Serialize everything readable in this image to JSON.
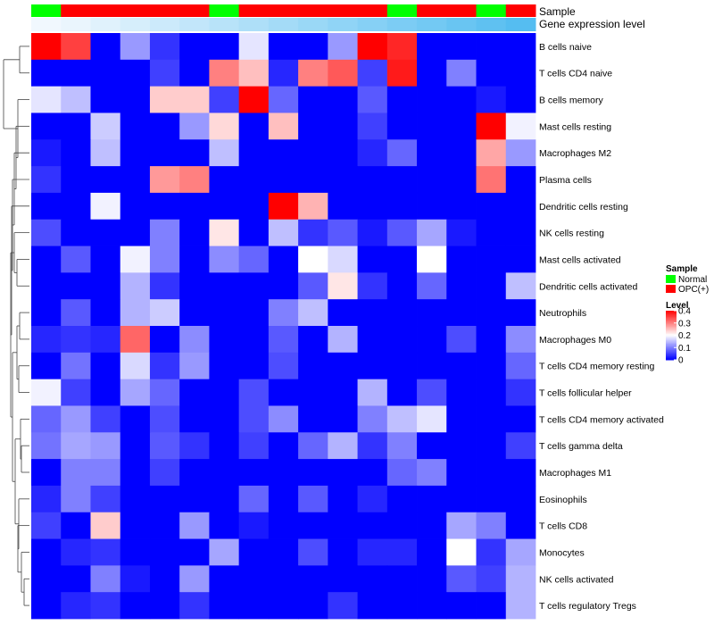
{
  "chart_data": {
    "type": "heatmap",
    "row_labels": [
      "B cells naive",
      "T cells CD4 naive",
      "B cells memory",
      "Mast cells resting",
      "Macrophages M2",
      "Plasma cells",
      "Dendritic cells resting",
      "NK cells resting",
      "Mast cells activated",
      "Dendritic cells activated",
      "Neutrophils",
      "Macrophages M0",
      "T cells CD4 memory resting",
      "T cells follicular helper",
      "T cells CD4 memory activated",
      "T cells gamma delta",
      "Macrophages M1",
      "Eosinophils",
      "T cells CD8",
      "Monocytes",
      "NK cells activated",
      "T cells regulatory  Tregs"
    ],
    "annotations": {
      "sample_label": "Sample",
      "level_label": "Gene expression level",
      "sample_groups": [
        "Normal",
        "OPC(+)",
        "OPC(+)",
        "OPC(+)",
        "OPC(+)",
        "OPC(+)",
        "Normal",
        "OPC(+)",
        "OPC(+)",
        "OPC(+)",
        "OPC(+)",
        "OPC(+)",
        "Normal",
        "OPC(+)",
        "OPC(+)",
        "Normal",
        "OPC(+)"
      ],
      "expression_level": [
        0.02,
        0.06,
        0.12,
        0.18,
        0.24,
        0.3,
        0.36,
        0.42,
        0.48,
        0.54,
        0.6,
        0.66,
        0.72,
        0.78,
        0.84,
        0.9,
        0.96
      ]
    },
    "values": [
      [
        0.4,
        0.35,
        0.0,
        0.12,
        0.04,
        0.0,
        0.0,
        0.18,
        0.0,
        0.0,
        0.12,
        0.4,
        0.37,
        0.0,
        0.0,
        0.0,
        0.0
      ],
      [
        0.0,
        0.0,
        0.0,
        0.0,
        0.05,
        0.0,
        0.3,
        0.25,
        0.03,
        0.3,
        0.33,
        0.05,
        0.38,
        0.0,
        0.1,
        0.0,
        0.0
      ],
      [
        0.18,
        0.15,
        0.0,
        0.0,
        0.24,
        0.24,
        0.05,
        0.42,
        0.08,
        0.0,
        0.0,
        0.07,
        0.0,
        0.0,
        0.0,
        0.02,
        0.0
      ],
      [
        0.0,
        0.0,
        0.16,
        0.0,
        0.0,
        0.12,
        0.23,
        0.0,
        0.25,
        0.0,
        0.0,
        0.05,
        0.0,
        0.0,
        0.0,
        0.4,
        0.19
      ],
      [
        0.02,
        0.0,
        0.15,
        0.0,
        0.0,
        0.0,
        0.15,
        0.0,
        0.0,
        0.0,
        0.0,
        0.03,
        0.08,
        0.0,
        0.0,
        0.27,
        0.12
      ],
      [
        0.04,
        0.0,
        0.0,
        0.0,
        0.28,
        0.3,
        0.0,
        0.0,
        0.0,
        0.0,
        0.0,
        0.0,
        0.0,
        0.0,
        0.0,
        0.31,
        0.0
      ],
      [
        0.0,
        0.0,
        0.19,
        0.0,
        0.0,
        0.0,
        0.0,
        0.0,
        0.4,
        0.26,
        0.0,
        0.0,
        0.0,
        0.0,
        0.0,
        0.0,
        0.0
      ],
      [
        0.06,
        0.0,
        0.0,
        0.0,
        0.1,
        0.0,
        0.22,
        0.0,
        0.15,
        0.04,
        0.07,
        0.02,
        0.07,
        0.13,
        0.02,
        0.0,
        0.0
      ],
      [
        0.0,
        0.07,
        0.0,
        0.19,
        0.1,
        0.0,
        0.11,
        0.08,
        0.0,
        0.2,
        0.17,
        0.0,
        0.0,
        0.2,
        0.0,
        0.0,
        0.0
      ],
      [
        0.0,
        0.0,
        0.0,
        0.14,
        0.04,
        0.0,
        0.0,
        0.0,
        0.0,
        0.07,
        0.22,
        0.04,
        0.0,
        0.08,
        0.0,
        0.0,
        0.15
      ],
      [
        0.0,
        0.07,
        0.0,
        0.14,
        0.16,
        0.0,
        0.0,
        0.0,
        0.1,
        0.15,
        0.0,
        0.0,
        0.0,
        0.0,
        0.0,
        0.0,
        0.0
      ],
      [
        0.03,
        0.04,
        0.03,
        0.32,
        0.0,
        0.11,
        0.0,
        0.0,
        0.07,
        0.0,
        0.14,
        0.0,
        0.0,
        0.0,
        0.06,
        0.0,
        0.11
      ],
      [
        0.0,
        0.09,
        0.0,
        0.17,
        0.04,
        0.12,
        0.0,
        0.0,
        0.06,
        0.0,
        0.0,
        0.0,
        0.0,
        0.0,
        0.0,
        0.0,
        0.08
      ],
      [
        0.19,
        0.05,
        0.0,
        0.13,
        0.08,
        0.0,
        0.0,
        0.06,
        0.0,
        0.0,
        0.0,
        0.14,
        0.0,
        0.06,
        0.0,
        0.0,
        0.04
      ],
      [
        0.08,
        0.12,
        0.05,
        0.0,
        0.06,
        0.0,
        0.0,
        0.06,
        0.11,
        0.0,
        0.0,
        0.1,
        0.15,
        0.18,
        0.0,
        0.0,
        0.0
      ],
      [
        0.09,
        0.13,
        0.12,
        0.0,
        0.07,
        0.04,
        0.0,
        0.05,
        0.0,
        0.08,
        0.14,
        0.04,
        0.1,
        0.0,
        0.0,
        0.0,
        0.05
      ],
      [
        0.0,
        0.1,
        0.1,
        0.0,
        0.05,
        0.0,
        0.0,
        0.0,
        0.0,
        0.0,
        0.0,
        0.0,
        0.08,
        0.1,
        0.0,
        0.0,
        0.0
      ],
      [
        0.03,
        0.1,
        0.05,
        0.0,
        0.0,
        0.0,
        0.0,
        0.08,
        0.0,
        0.07,
        0.0,
        0.03,
        0.0,
        0.0,
        0.0,
        0.0,
        0.0
      ],
      [
        0.05,
        0.0,
        0.24,
        0.0,
        0.0,
        0.12,
        0.0,
        0.02,
        0.0,
        0.0,
        0.0,
        0.0,
        0.0,
        0.0,
        0.13,
        0.1,
        0.0
      ],
      [
        0.0,
        0.03,
        0.04,
        0.0,
        0.0,
        0.0,
        0.13,
        0.0,
        0.0,
        0.06,
        0.0,
        0.03,
        0.03,
        0.0,
        0.2,
        0.04,
        0.13
      ],
      [
        0.0,
        0.0,
        0.1,
        0.02,
        0.0,
        0.12,
        0.0,
        0.0,
        0.0,
        0.0,
        0.0,
        0.0,
        0.0,
        0.0,
        0.07,
        0.05,
        0.14
      ],
      [
        0.0,
        0.03,
        0.04,
        0.0,
        0.0,
        0.04,
        0.0,
        0.0,
        0.0,
        0.0,
        0.04,
        0.0,
        0.0,
        0.0,
        0.0,
        0.0,
        0.14
      ]
    ],
    "color_scale": {
      "min": 0,
      "max": 0.4,
      "low": "#0000FF",
      "mid": "#FFFFFF",
      "high": "#FF0000"
    },
    "legend": {
      "sample_title": "Sample",
      "sample_items": [
        {
          "label": "Normal",
          "color": "#00FF00"
        },
        {
          "label": "OPC(+)",
          "color": "#FF0000"
        }
      ],
      "level_title": "Level",
      "level_ticks": [
        "0.4",
        "0.3",
        "0.2",
        "0.1",
        "0"
      ],
      "level_tick_values": [
        0.4,
        0.3,
        0.2,
        0.1,
        0
      ],
      "position": "right"
    }
  },
  "colors": {
    "normal": "#00FF00",
    "opc": "#FF0000",
    "expr_low": "#F4F9FE",
    "expr_high": "#4EBBF0"
  }
}
